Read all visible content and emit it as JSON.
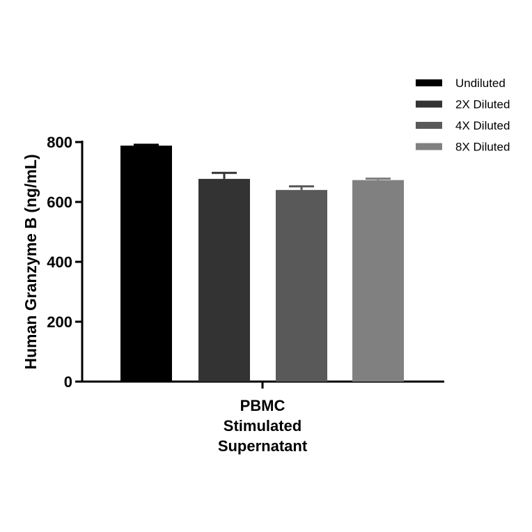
{
  "chart_data": {
    "type": "bar",
    "categories": [
      "PBMC\nStimulated\nSupernatant"
    ],
    "category_lines": [
      "PBMC",
      "Stimulated",
      "Supernatant"
    ],
    "ylabel": "Human Granzyme B (ng/mL)",
    "xlabel": "",
    "ylim": [
      0,
      800
    ],
    "yticks": [
      0,
      200,
      400,
      600,
      800
    ],
    "grid": false,
    "legend_position": "top-right",
    "series": [
      {
        "name": "Undiluted",
        "values": [
          788
        ],
        "error": [
          3
        ],
        "color": "#000000"
      },
      {
        "name": "2X Diluted",
        "values": [
          677
        ],
        "error": [
          20
        ],
        "color": "#333333"
      },
      {
        "name": "4X Diluted",
        "values": [
          640
        ],
        "error": [
          12
        ],
        "color": "#595959"
      },
      {
        "name": "8X Diluted",
        "values": [
          673
        ],
        "error": [
          5
        ],
        "color": "#808080"
      }
    ]
  }
}
